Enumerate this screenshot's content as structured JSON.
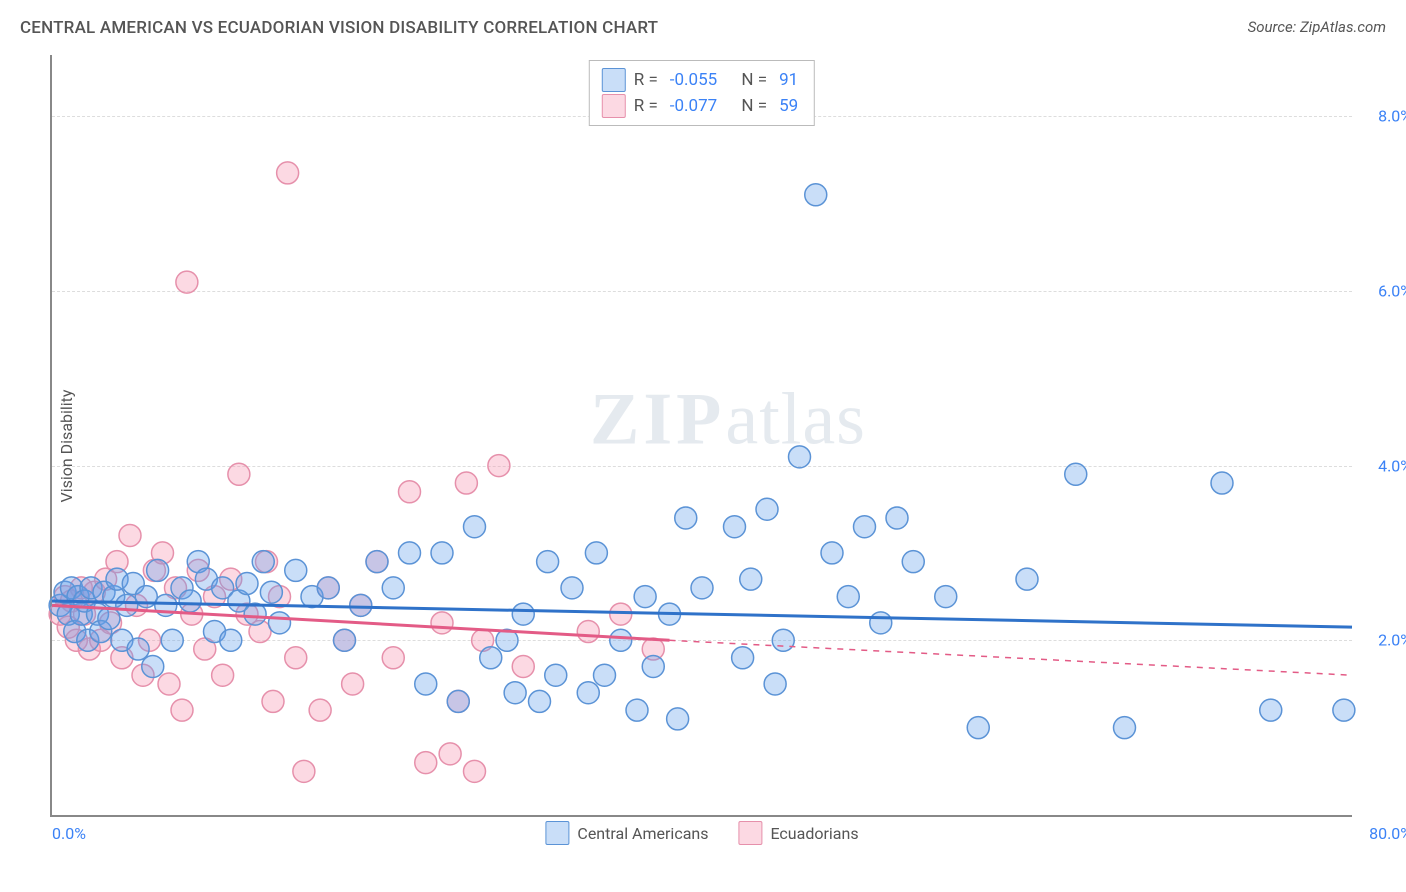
{
  "title": "CENTRAL AMERICAN VS ECUADORIAN VISION DISABILITY CORRELATION CHART",
  "source_prefix": "Source: ",
  "source_name": "ZipAtlas.com",
  "ylabel": "Vision Disability",
  "watermark_zip": "ZIP",
  "watermark_atlas": "atlas",
  "chart": {
    "type": "scatter",
    "xlim": [
      0,
      80
    ],
    "ylim": [
      0,
      8.7
    ],
    "background_color": "#ffffff",
    "grid_color": "#dddddd",
    "grid_dash": "4,4",
    "marker_radius": 11,
    "marker_stroke_width": 1.5,
    "trend_line_width": 3,
    "yticks": [
      {
        "value": 2.0,
        "label": "2.0%"
      },
      {
        "value": 4.0,
        "label": "4.0%"
      },
      {
        "value": 6.0,
        "label": "6.0%"
      },
      {
        "value": 8.0,
        "label": "8.0%"
      }
    ],
    "xticks": [
      {
        "value": 0.0,
        "label": "0.0%",
        "align": "left"
      },
      {
        "value": 80.0,
        "label": "80.0%",
        "align": "right"
      }
    ],
    "series": [
      {
        "key": "central_americans",
        "label": "Central Americans",
        "fill_color": "rgba(100,160,235,0.35)",
        "stroke_color": "#5b93d6",
        "trend_color": "#2f72c9",
        "r_label": "R =",
        "r_value": "-0.055",
        "n_label": "N =",
        "n_value": "91",
        "trend": {
          "x1": 0,
          "y1": 2.45,
          "x2": 80,
          "y2": 2.15,
          "dash_after_x": 80
        },
        "points": [
          [
            0.5,
            2.4
          ],
          [
            0.8,
            2.55
          ],
          [
            1.0,
            2.3
          ],
          [
            1.2,
            2.6
          ],
          [
            1.4,
            2.1
          ],
          [
            1.6,
            2.5
          ],
          [
            1.8,
            2.3
          ],
          [
            2.0,
            2.45
          ],
          [
            2.2,
            2.0
          ],
          [
            2.4,
            2.6
          ],
          [
            2.8,
            2.3
          ],
          [
            3.0,
            2.1
          ],
          [
            3.2,
            2.55
          ],
          [
            3.5,
            2.25
          ],
          [
            3.8,
            2.5
          ],
          [
            4.0,
            2.7
          ],
          [
            4.3,
            2.0
          ],
          [
            4.6,
            2.4
          ],
          [
            5.0,
            2.65
          ],
          [
            5.3,
            1.9
          ],
          [
            5.8,
            2.5
          ],
          [
            6.2,
            1.7
          ],
          [
            6.5,
            2.8
          ],
          [
            7.0,
            2.4
          ],
          [
            7.4,
            2.0
          ],
          [
            8.0,
            2.6
          ],
          [
            8.5,
            2.45
          ],
          [
            9.0,
            2.9
          ],
          [
            9.5,
            2.7
          ],
          [
            10.0,
            2.1
          ],
          [
            10.5,
            2.6
          ],
          [
            11.0,
            2.0
          ],
          [
            11.5,
            2.45
          ],
          [
            12.0,
            2.65
          ],
          [
            12.5,
            2.3
          ],
          [
            13.0,
            2.9
          ],
          [
            13.5,
            2.55
          ],
          [
            14.0,
            2.2
          ],
          [
            15.0,
            2.8
          ],
          [
            16.0,
            2.5
          ],
          [
            17.0,
            2.6
          ],
          [
            18.0,
            2.0
          ],
          [
            19.0,
            2.4
          ],
          [
            20.0,
            2.9
          ],
          [
            21.0,
            2.6
          ],
          [
            22.0,
            3.0
          ],
          [
            23.0,
            1.5
          ],
          [
            24.0,
            3.0
          ],
          [
            25.0,
            1.3
          ],
          [
            26.0,
            3.3
          ],
          [
            27.0,
            1.8
          ],
          [
            28.0,
            2.0
          ],
          [
            28.5,
            1.4
          ],
          [
            29.0,
            2.3
          ],
          [
            30.0,
            1.3
          ],
          [
            30.5,
            2.9
          ],
          [
            31.0,
            1.6
          ],
          [
            32.0,
            2.6
          ],
          [
            33.0,
            1.4
          ],
          [
            33.5,
            3.0
          ],
          [
            34.0,
            1.6
          ],
          [
            35.0,
            2.0
          ],
          [
            36.0,
            1.2
          ],
          [
            36.5,
            2.5
          ],
          [
            37.0,
            1.7
          ],
          [
            38.0,
            2.3
          ],
          [
            38.5,
            1.1
          ],
          [
            39.0,
            3.4
          ],
          [
            40.0,
            2.6
          ],
          [
            42.0,
            3.3
          ],
          [
            42.5,
            1.8
          ],
          [
            43.0,
            2.7
          ],
          [
            44.0,
            3.5
          ],
          [
            45.0,
            2.0
          ],
          [
            46.0,
            4.1
          ],
          [
            47.0,
            7.1
          ],
          [
            48.0,
            3.0
          ],
          [
            49.0,
            2.5
          ],
          [
            50.0,
            3.3
          ],
          [
            51.0,
            2.2
          ],
          [
            52.0,
            3.4
          ],
          [
            53.0,
            2.9
          ],
          [
            55.0,
            2.5
          ],
          [
            57.0,
            1.0
          ],
          [
            60.0,
            2.7
          ],
          [
            63.0,
            3.9
          ],
          [
            66.0,
            1.0
          ],
          [
            72.0,
            3.8
          ],
          [
            75.0,
            1.2
          ],
          [
            79.5,
            1.2
          ],
          [
            44.5,
            1.5
          ]
        ]
      },
      {
        "key": "ecuadorians",
        "label": "Ecuadorians",
        "fill_color": "rgba(245,145,175,0.35)",
        "stroke_color": "#e690ab",
        "trend_color": "#e35b86",
        "r_label": "R =",
        "r_value": "-0.077",
        "n_label": "N =",
        "n_value": "59",
        "trend": {
          "x1": 0,
          "y1": 2.4,
          "x2": 38,
          "y2": 2.0,
          "dash_after_x": 38,
          "x_end": 80,
          "y_end": 1.6
        },
        "points": [
          [
            0.5,
            2.3
          ],
          [
            0.8,
            2.5
          ],
          [
            1.0,
            2.15
          ],
          [
            1.2,
            2.45
          ],
          [
            1.5,
            2.0
          ],
          [
            1.8,
            2.6
          ],
          [
            2.0,
            2.3
          ],
          [
            2.3,
            1.9
          ],
          [
            2.6,
            2.55
          ],
          [
            3.0,
            2.0
          ],
          [
            3.3,
            2.7
          ],
          [
            3.6,
            2.2
          ],
          [
            4.0,
            2.9
          ],
          [
            4.3,
            1.8
          ],
          [
            4.8,
            3.2
          ],
          [
            5.2,
            2.4
          ],
          [
            5.6,
            1.6
          ],
          [
            6.0,
            2.0
          ],
          [
            6.3,
            2.8
          ],
          [
            6.8,
            3.0
          ],
          [
            7.2,
            1.5
          ],
          [
            7.6,
            2.6
          ],
          [
            8.0,
            1.2
          ],
          [
            8.3,
            6.1
          ],
          [
            8.6,
            2.3
          ],
          [
            9.0,
            2.8
          ],
          [
            9.4,
            1.9
          ],
          [
            10.0,
            2.5
          ],
          [
            10.5,
            1.6
          ],
          [
            11.0,
            2.7
          ],
          [
            11.5,
            3.9
          ],
          [
            12.0,
            2.3
          ],
          [
            12.8,
            2.1
          ],
          [
            13.2,
            2.9
          ],
          [
            13.6,
            1.3
          ],
          [
            14.0,
            2.5
          ],
          [
            14.5,
            7.35
          ],
          [
            15.0,
            1.8
          ],
          [
            15.5,
            0.5
          ],
          [
            16.5,
            1.2
          ],
          [
            17.0,
            2.6
          ],
          [
            18.0,
            2.0
          ],
          [
            18.5,
            1.5
          ],
          [
            19.0,
            2.4
          ],
          [
            20.0,
            2.9
          ],
          [
            21.0,
            1.8
          ],
          [
            22.0,
            3.7
          ],
          [
            23.0,
            0.6
          ],
          [
            24.0,
            2.2
          ],
          [
            25.0,
            1.3
          ],
          [
            25.5,
            3.8
          ],
          [
            26.0,
            0.5
          ],
          [
            27.5,
            4.0
          ],
          [
            29.0,
            1.7
          ],
          [
            33.0,
            2.1
          ],
          [
            26.5,
            2.0
          ],
          [
            35.0,
            2.3
          ],
          [
            37.0,
            1.9
          ],
          [
            24.5,
            0.7
          ]
        ]
      }
    ]
  }
}
